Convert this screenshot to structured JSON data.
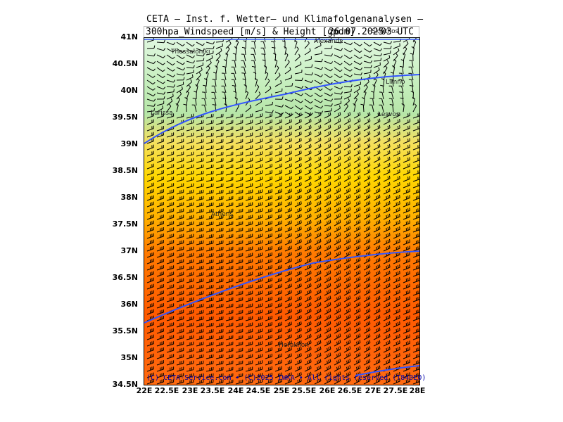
{
  "title": {
    "line1": "CETA – Inst. f. Wetter– und Klimafolgenanalysen –",
    "variable": "300hpa_Windspeed [m/s] & Height [gpdm]",
    "date": "26.07.2025",
    "time": "03 UTC"
  },
  "axes": {
    "y_ticks": [
      "41N",
      "40.5N",
      "40N",
      "39.5N",
      "39N",
      "38.5N",
      "38N",
      "37.5N",
      "37N",
      "36.5N",
      "36N",
      "35.5N",
      "35N",
      "34.5N"
    ],
    "x_ticks": [
      "22E",
      "22.5E",
      "23E",
      "23.5E",
      "24E",
      "24.5E",
      "25E",
      "25.5E",
      "26E",
      "26.5E",
      "27E",
      "27.5E",
      "28E"
    ]
  },
  "places": {
    "thessaloniki": "Thessaloniki",
    "alexandr": "Alexandr.",
    "skiathos": "Skiathos",
    "limno": "Limno",
    "larissa": "Larissa",
    "lesvos": "Lesvos",
    "athens": "Athens",
    "heraklion": "Heraklion"
  },
  "copyright": "(C) CETA-Service.com  •  (C)2025 IWKA  •  All rights reserved (T840E0)",
  "colors": {
    "weak": "#d8f5d8",
    "moderate": "#b8e8b0",
    "strong_yellow": "#ffe000",
    "strong_orange": "#ff9a00",
    "jet_core": "#ff5a00",
    "contour": "#3355ff"
  }
}
